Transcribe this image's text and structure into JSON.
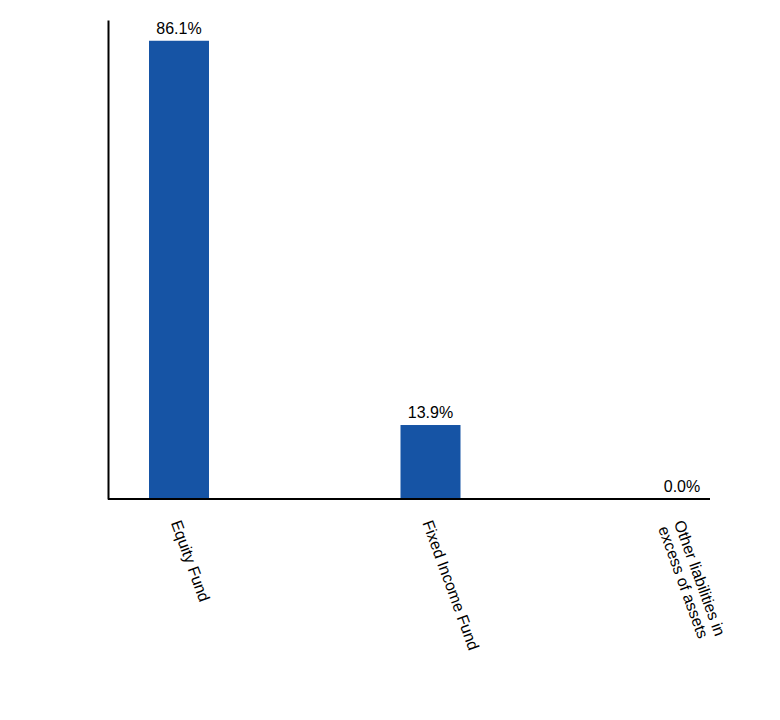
{
  "chart_data": {
    "type": "bar",
    "categories": [
      "Equity Fund",
      "Fixed Income Fund",
      "Other liabilities in excess of assets"
    ],
    "values": [
      86.1,
      13.9,
      0.0
    ],
    "value_labels": [
      "86.1%",
      "13.9%",
      "0.0%"
    ],
    "color": "#1654a5",
    "ylim": [
      0,
      90
    ],
    "data_labels": true,
    "tick_labels": "x",
    "grid": false
  }
}
